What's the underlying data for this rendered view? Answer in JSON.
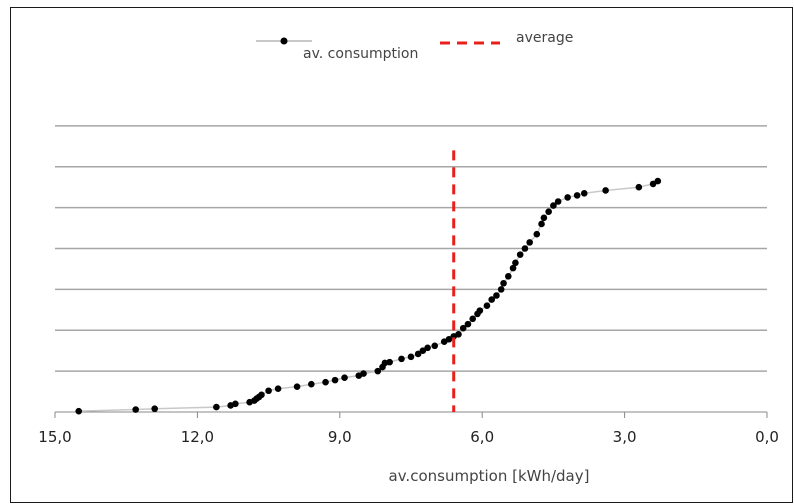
{
  "chart_data": {
    "type": "scatter",
    "xlabel": "av.consumption [kWh/day]",
    "ylabel": "",
    "xlim": [
      15.0,
      0.0
    ],
    "x_reversed": true,
    "ylim": [
      0,
      8
    ],
    "x_ticks": [
      "15,0",
      "12,0",
      "9,0",
      "6,0",
      "3,0",
      "0,0"
    ],
    "x_tick_values": [
      15,
      12,
      9,
      6,
      3,
      0
    ],
    "grid": "horizontal",
    "legend": [
      "av. consumption",
      "average"
    ],
    "average_line": {
      "name": "average",
      "x": 6.6,
      "style": "dashed",
      "color": "#e8201c"
    },
    "series": [
      {
        "name": "av. consumption",
        "color": "#000000",
        "line_color": "#c8c8c8",
        "points": [
          [
            14.5,
            0.02
          ],
          [
            13.3,
            0.06
          ],
          [
            12.9,
            0.08
          ],
          [
            11.6,
            0.12
          ],
          [
            11.3,
            0.16
          ],
          [
            11.2,
            0.2
          ],
          [
            10.9,
            0.24
          ],
          [
            10.8,
            0.28
          ],
          [
            10.75,
            0.33
          ],
          [
            10.7,
            0.37
          ],
          [
            10.65,
            0.42
          ],
          [
            10.5,
            0.52
          ],
          [
            10.3,
            0.57
          ],
          [
            9.9,
            0.62
          ],
          [
            9.6,
            0.68
          ],
          [
            9.3,
            0.73
          ],
          [
            9.1,
            0.78
          ],
          [
            8.9,
            0.84
          ],
          [
            8.6,
            0.89
          ],
          [
            8.5,
            0.94
          ],
          [
            8.2,
            1.0
          ],
          [
            8.1,
            1.1
          ],
          [
            8.05,
            1.2
          ],
          [
            7.95,
            1.22
          ],
          [
            7.7,
            1.3
          ],
          [
            7.5,
            1.35
          ],
          [
            7.35,
            1.42
          ],
          [
            7.25,
            1.5
          ],
          [
            7.15,
            1.57
          ],
          [
            7.0,
            1.62
          ],
          [
            6.8,
            1.72
          ],
          [
            6.7,
            1.78
          ],
          [
            6.6,
            1.85
          ],
          [
            6.5,
            1.9
          ],
          [
            6.4,
            2.05
          ],
          [
            6.3,
            2.15
          ],
          [
            6.2,
            2.28
          ],
          [
            6.1,
            2.4
          ],
          [
            6.05,
            2.48
          ],
          [
            5.9,
            2.6
          ],
          [
            5.8,
            2.75
          ],
          [
            5.7,
            2.85
          ],
          [
            5.6,
            3.0
          ],
          [
            5.55,
            3.15
          ],
          [
            5.45,
            3.32
          ],
          [
            5.35,
            3.52
          ],
          [
            5.3,
            3.65
          ],
          [
            5.2,
            3.85
          ],
          [
            5.1,
            4.0
          ],
          [
            5.0,
            4.15
          ],
          [
            4.85,
            4.35
          ],
          [
            4.75,
            4.6
          ],
          [
            4.7,
            4.75
          ],
          [
            4.6,
            4.9
          ],
          [
            4.5,
            5.05
          ],
          [
            4.4,
            5.15
          ],
          [
            4.2,
            5.25
          ],
          [
            4.0,
            5.3
          ],
          [
            3.85,
            5.35
          ],
          [
            3.4,
            5.42
          ],
          [
            2.7,
            5.5
          ],
          [
            2.4,
            5.58
          ],
          [
            2.3,
            5.65
          ]
        ]
      }
    ]
  }
}
